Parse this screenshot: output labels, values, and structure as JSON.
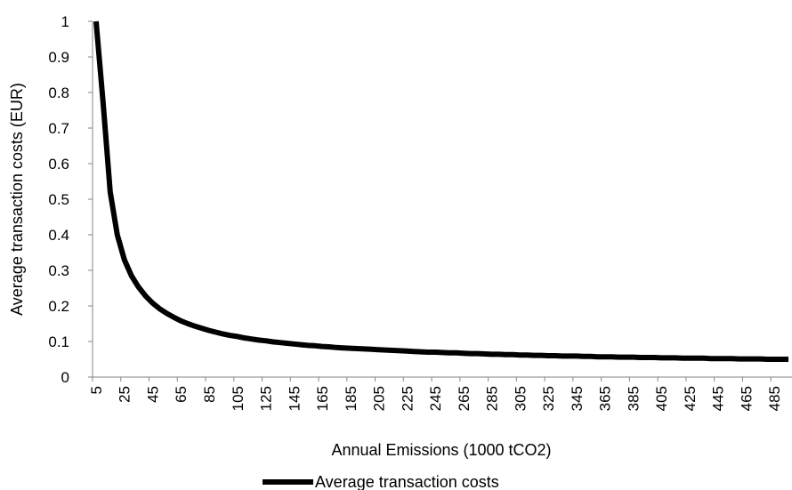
{
  "chart_data": {
    "type": "line",
    "xlabel": "Annual Emissions (1000 tCO2)",
    "ylabel": "Average transaction costs (EUR)",
    "ylim": [
      0,
      1
    ],
    "yticks": [
      "0",
      "0.1",
      "0.2",
      "0.3",
      "0.4",
      "0.5",
      "0.6",
      "0.7",
      "0.8",
      "0.9",
      "1"
    ],
    "x": [
      5,
      10,
      15,
      20,
      25,
      30,
      35,
      40,
      45,
      50,
      55,
      60,
      65,
      70,
      75,
      80,
      85,
      90,
      95,
      100,
      105,
      110,
      115,
      120,
      125,
      130,
      135,
      140,
      145,
      150,
      155,
      160,
      165,
      170,
      175,
      180,
      185,
      190,
      195,
      200,
      205,
      210,
      215,
      220,
      225,
      230,
      235,
      240,
      245,
      250,
      255,
      260,
      265,
      270,
      275,
      280,
      285,
      290,
      295,
      300,
      305,
      310,
      315,
      320,
      325,
      330,
      335,
      340,
      345,
      350,
      355,
      360,
      365,
      370,
      375,
      380,
      385,
      390,
      395,
      400,
      405,
      410,
      415,
      420,
      425,
      430,
      435,
      440,
      445,
      450,
      455,
      460,
      465,
      470,
      475,
      480,
      485,
      490,
      495
    ],
    "xtick_labels": [
      "5",
      "25",
      "45",
      "65",
      "85",
      "105",
      "125",
      "145",
      "165",
      "185",
      "205",
      "225",
      "245",
      "265",
      "285",
      "305",
      "325",
      "345",
      "365",
      "385",
      "405",
      "425",
      "445",
      "465",
      "485"
    ],
    "series": [
      {
        "name": "Average transaction costs",
        "color": "#000000",
        "values": [
          1.0,
          0.77,
          0.52,
          0.4,
          0.33,
          0.285,
          0.253,
          0.228,
          0.208,
          0.192,
          0.179,
          0.168,
          0.158,
          0.15,
          0.143,
          0.137,
          0.131,
          0.126,
          0.121,
          0.117,
          0.114,
          0.11,
          0.107,
          0.104,
          0.102,
          0.099,
          0.097,
          0.095,
          0.093,
          0.091,
          0.089,
          0.088,
          0.086,
          0.085,
          0.083,
          0.082,
          0.081,
          0.08,
          0.079,
          0.078,
          0.077,
          0.076,
          0.075,
          0.074,
          0.073,
          0.072,
          0.071,
          0.07,
          0.07,
          0.069,
          0.068,
          0.068,
          0.067,
          0.066,
          0.066,
          0.065,
          0.064,
          0.064,
          0.063,
          0.063,
          0.062,
          0.062,
          0.061,
          0.061,
          0.06,
          0.06,
          0.059,
          0.059,
          0.059,
          0.058,
          0.058,
          0.057,
          0.057,
          0.057,
          0.056,
          0.056,
          0.056,
          0.055,
          0.055,
          0.055,
          0.054,
          0.054,
          0.054,
          0.053,
          0.053,
          0.053,
          0.053,
          0.052,
          0.052,
          0.052,
          0.052,
          0.051,
          0.051,
          0.051,
          0.051,
          0.05,
          0.05,
          0.05,
          0.05
        ]
      }
    ],
    "legend_position": "bottom",
    "grid": false
  }
}
